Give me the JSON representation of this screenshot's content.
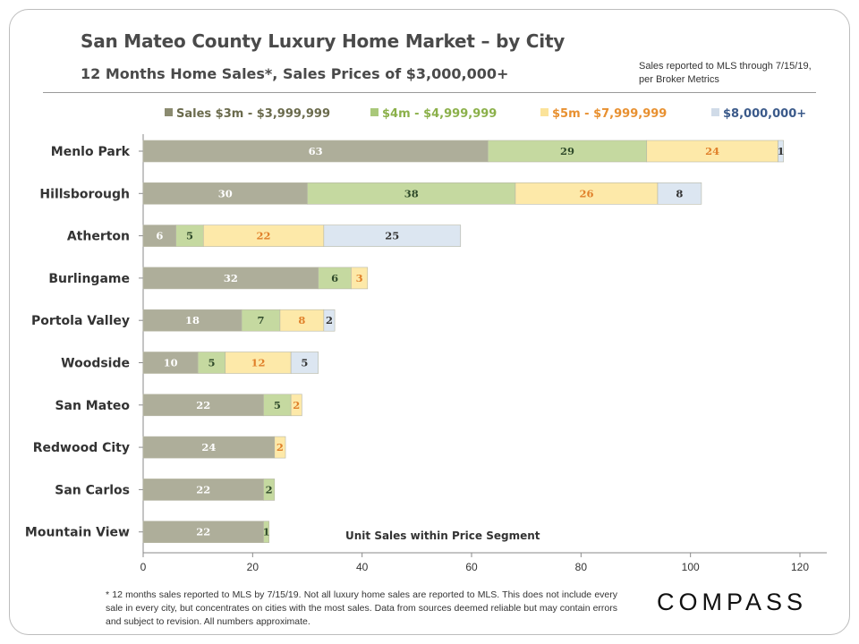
{
  "header": {
    "title": "San Mateo County Luxury Home Market – by City",
    "subtitle": "12 Months Home Sales*, Sales Prices of $3,000,000+",
    "note": "Sales reported to MLS through 7/15/19, per Broker Metrics"
  },
  "footer": {
    "footnote": "* 12 months sales reported to MLS by 7/15/19. Not all luxury home sales are reported to MLS. This does not include every sale in every city, but concentrates on cities with the most sales. Data from sources deemed reliable but may contain errors and subject to revision. All numbers approximate.",
    "logo": "COMPASS"
  },
  "colors": {
    "s1": "#aeae9a",
    "s2": "#c5d9a0",
    "s3": "#fde9a9",
    "s4": "#dce6f1",
    "label1": "#ffffff",
    "label2": "#2f4a2a",
    "label3": "#e0802a",
    "label4": "#333333",
    "legend1": "#6b6b4d",
    "legend2": "#8bb04a",
    "legend3": "#e89030",
    "legend4": "#3b5a8a",
    "legendSwatch1": "#8b8b70",
    "legendSwatch2": "#a9c87a",
    "legendSwatch3": "#fbe39a",
    "legendSwatch4": "#d0dbe8"
  },
  "chart_data": {
    "type": "bar",
    "orientation": "horizontal",
    "stacked": true,
    "categories": [
      "Menlo Park",
      "Hillsborough",
      "Atherton",
      "Burlingame",
      "Portola Valley",
      "Woodside",
      "San Mateo",
      "Redwood City",
      "San Carlos",
      "Mountain View"
    ],
    "series": [
      {
        "name": "Sales $3m - $3,999,999",
        "values": [
          63,
          30,
          6,
          32,
          18,
          10,
          22,
          24,
          22,
          22
        ]
      },
      {
        "name": "$4m - $4,999,999",
        "values": [
          29,
          38,
          5,
          6,
          7,
          5,
          5,
          0,
          2,
          1
        ]
      },
      {
        "name": "$5m - $7,999,999",
        "values": [
          24,
          26,
          22,
          3,
          8,
          12,
          2,
          2,
          0,
          0
        ]
      },
      {
        "name": "$8,000,000+",
        "values": [
          1,
          8,
          25,
          0,
          2,
          5,
          0,
          0,
          0,
          0
        ]
      }
    ],
    "xlim": [
      0,
      120
    ],
    "xticks": [
      0,
      20,
      40,
      60,
      80,
      100,
      120
    ],
    "annotation": "Unit Sales within Price Segment",
    "legend_position": "top",
    "grid": false
  }
}
